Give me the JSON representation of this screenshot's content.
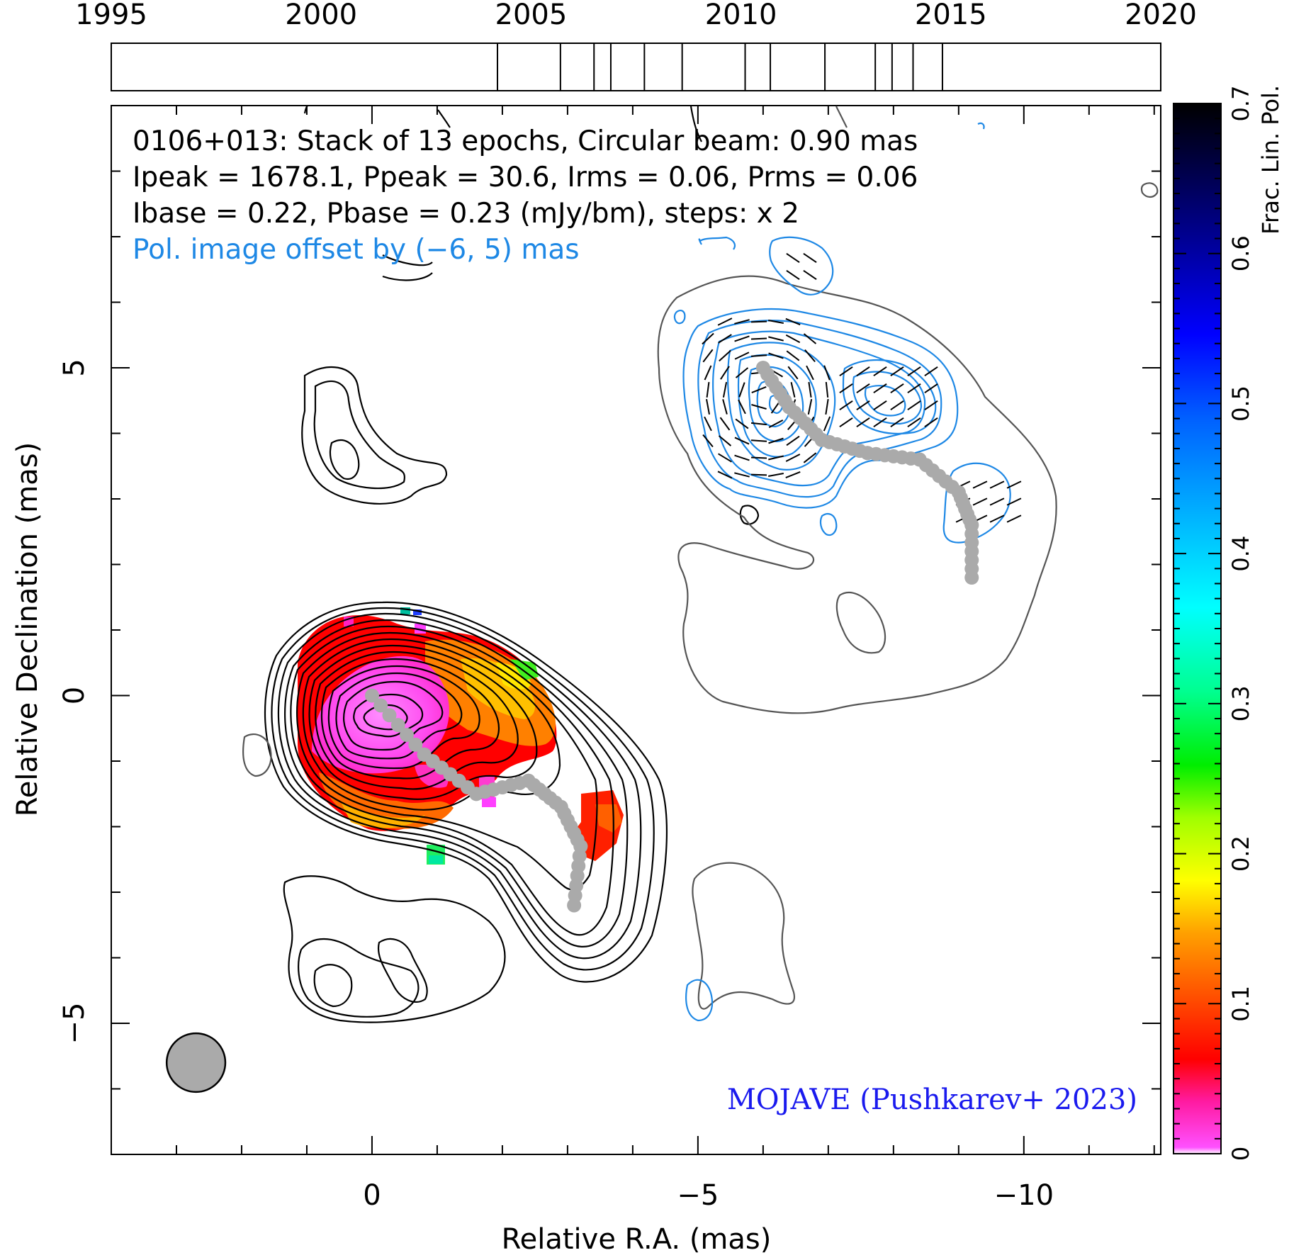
{
  "chart_data": {
    "type": "contour-map",
    "source": "0106+013",
    "header_lines": [
      "0106+013: Stack of 13 epochs, Circular beam: 0.90 mas",
      "Ipeak = 1678.1, Ppeak = 30.6, Irms = 0.06, Prms = 0.06",
      "Ibase = 0.22, Pbase = 0.23 (mJy/bm), steps: x 2"
    ],
    "pol_offset_note": "Pol. image offset by (−6, 5) mas",
    "credit": "MOJAVE (Pushkarev+ 2023)",
    "xlabel": "Relative R.A. (mas)",
    "ylabel": "Relative Declination (mas)",
    "xlim": [
      4,
      -12.1
    ],
    "ylim": [
      -7,
      9
    ],
    "x_tick_labels": [
      "0",
      "−5",
      "−10"
    ],
    "y_tick_labels": [
      "−5",
      "0",
      "5"
    ],
    "beam_fwhm_mas": 0.9,
    "beam_center": [
      2.7,
      -5.6
    ],
    "epoch_axis": {
      "range": [
        1995,
        2020
      ],
      "tick_labels": [
        "1995",
        "2000",
        "2005",
        "2010",
        "2015",
        "2020"
      ],
      "epochs": [
        2004.2,
        2005.7,
        2006.5,
        2006.9,
        2007.7,
        2008.6,
        2010.1,
        2010.7,
        2012.0,
        2013.2,
        2013.6,
        2014.1,
        2014.8
      ]
    },
    "colorbar": {
      "label": "Frac. Lin. Pol.",
      "range": [
        0,
        0.7
      ],
      "tick_labels": [
        "0",
        "0.1",
        "0.2",
        "0.3",
        "0.4",
        "0.5",
        "0.6",
        "0.7"
      ]
    },
    "ridge_line": [
      [
        0,
        0
      ],
      [
        -0.8,
        -0.9
      ],
      [
        -1.6,
        -1.5
      ],
      [
        -2.4,
        -1.3
      ],
      [
        -2.9,
        -1.7
      ],
      [
        -3.2,
        -2.3
      ],
      [
        -3.1,
        -3.2
      ]
    ],
    "offset_ridge_line": [
      [
        -6,
        5
      ],
      [
        -6.4,
        4.4
      ],
      [
        -6.9,
        3.9
      ],
      [
        -7.6,
        3.7
      ],
      [
        -8.4,
        3.6
      ],
      [
        -9,
        3.1
      ],
      [
        -9.2,
        2.6
      ],
      [
        -9.2,
        1.8
      ]
    ],
    "colors": {
      "intensity_contours": "#000000",
      "pol_contours": "#1e88e5",
      "lowest_contour": "#555555",
      "ridge": "#aaaaaa",
      "beam_fill": "#aaaaaa"
    }
  }
}
